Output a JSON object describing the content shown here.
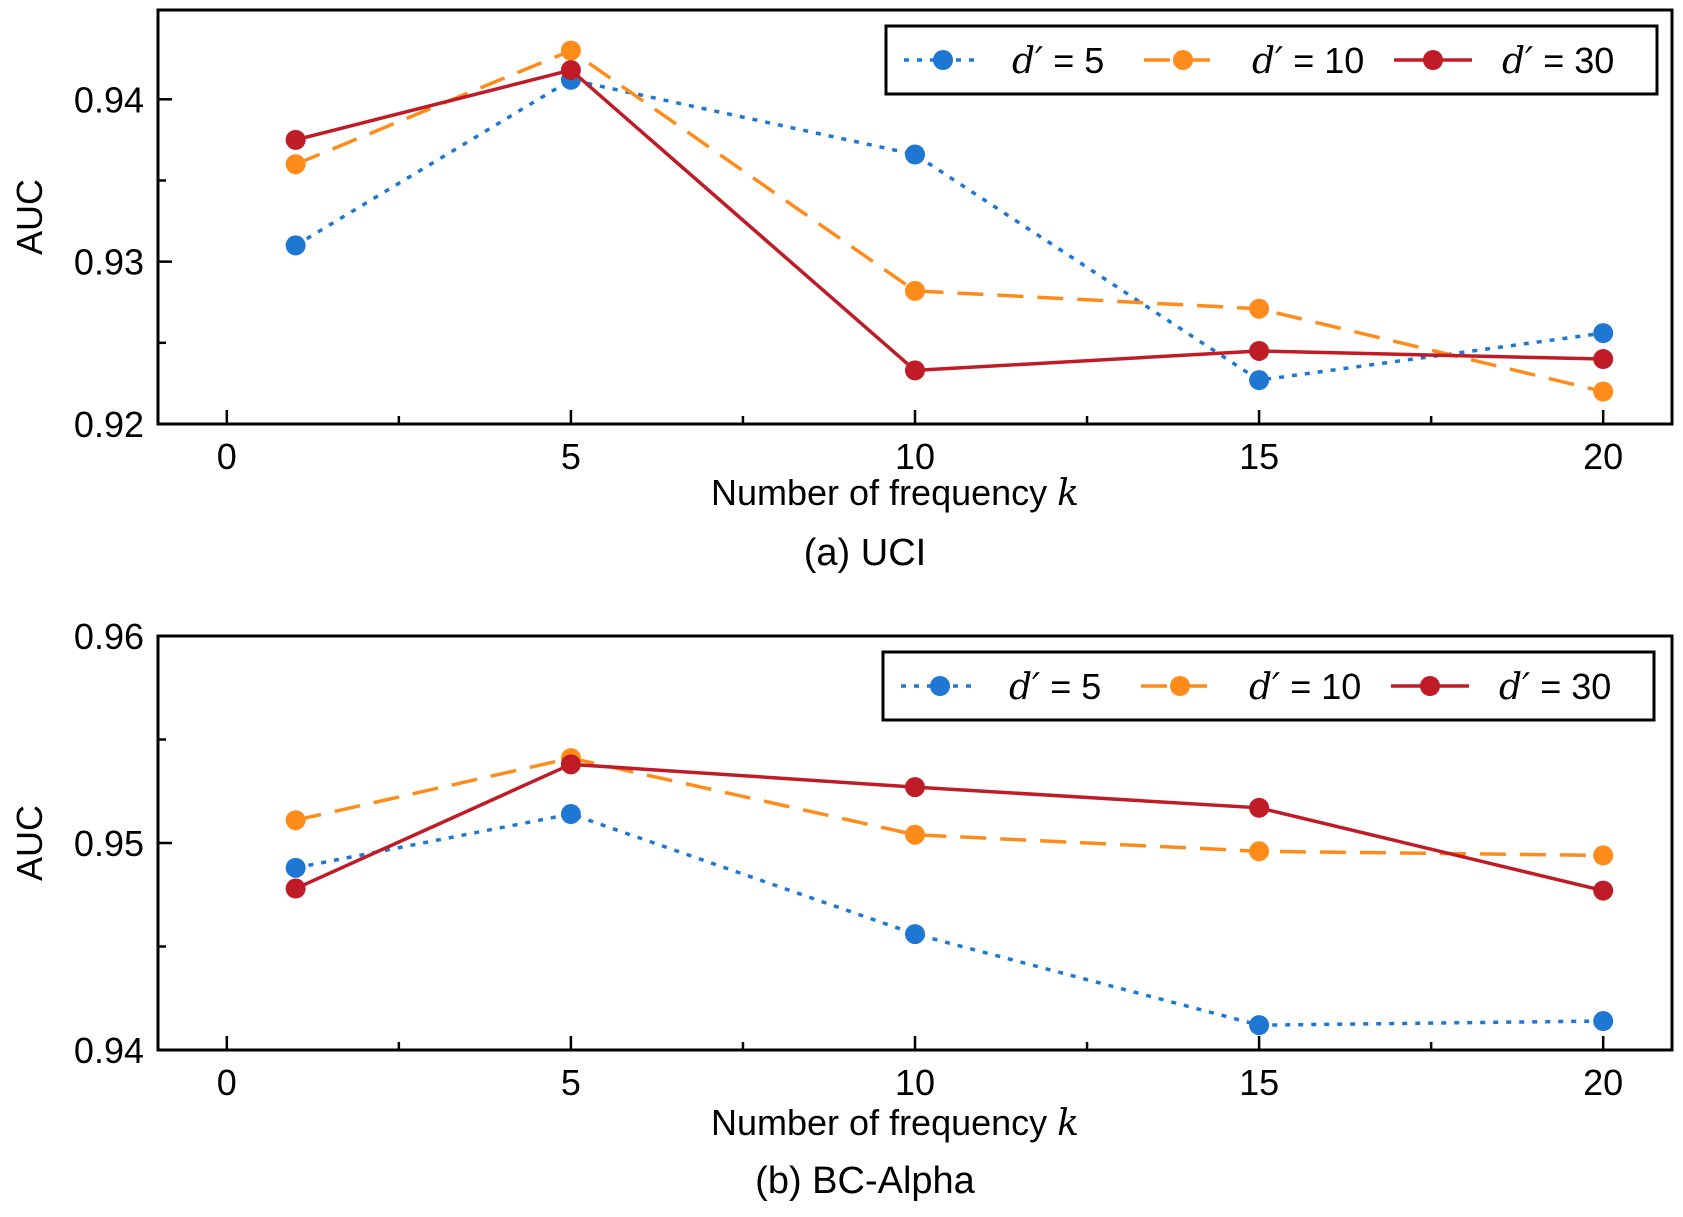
{
  "colors": {
    "d5": "#1f77d4",
    "d10": "#ff8c1a",
    "d30": "#c01c28"
  },
  "chart_data": [
    {
      "type": "line",
      "caption": "(a)  UCI",
      "xlabel_text": "Number of frequency",
      "xlabel_var": "k",
      "ylabel": "AUC",
      "xlim": [
        -1,
        21
      ],
      "ylim": [
        0.92,
        0.9455
      ],
      "xticks": [
        0,
        5,
        10,
        15,
        20
      ],
      "xtick_labels": [
        "0",
        "5",
        "10",
        "15",
        "20"
      ],
      "yticks": [
        0.92,
        0.93,
        0.94
      ],
      "ytick_labels": [
        "0.92",
        "0.93",
        "0.94"
      ],
      "x": [
        1,
        5,
        10,
        15,
        20
      ],
      "series": [
        {
          "name": "d′ = 5",
          "name_var": "d′",
          "name_rest": " = 5",
          "key": "d5",
          "style": "dotted",
          "values": [
            0.931,
            0.9412,
            0.9366,
            0.9227,
            0.9256
          ]
        },
        {
          "name": "d′ = 10",
          "name_var": "d′",
          "name_rest": " = 10",
          "key": "d10",
          "style": "dashed",
          "values": [
            0.936,
            0.943,
            0.9282,
            0.9271,
            0.922
          ]
        },
        {
          "name": "d′ = 30",
          "name_var": "d′",
          "name_rest": " = 30",
          "key": "d30",
          "style": "solid",
          "values": [
            0.9375,
            0.9418,
            0.9233,
            0.9245,
            0.924
          ]
        }
      ],
      "legend": "top-right"
    },
    {
      "type": "line",
      "caption": "(b)  BC-Alpha",
      "xlabel_text": "Number of frequency",
      "xlabel_var": "k",
      "ylabel": "AUC",
      "xlim": [
        -1,
        21
      ],
      "ylim": [
        0.94,
        0.96
      ],
      "xticks": [
        0,
        5,
        10,
        15,
        20
      ],
      "xtick_labels": [
        "0",
        "5",
        "10",
        "15",
        "20"
      ],
      "yticks": [
        0.94,
        0.95,
        0.96
      ],
      "ytick_labels": [
        "0.94",
        "0.95",
        "0.96"
      ],
      "x": [
        1,
        5,
        10,
        15,
        20
      ],
      "series": [
        {
          "name": "d′ = 5",
          "name_var": "d′",
          "name_rest": " = 5",
          "key": "d5",
          "style": "dotted",
          "values": [
            0.9488,
            0.9514,
            0.9456,
            0.9412,
            0.9414
          ]
        },
        {
          "name": "d′ = 10",
          "name_var": "d′",
          "name_rest": " = 10",
          "key": "d10",
          "style": "dashed",
          "values": [
            0.9511,
            0.9541,
            0.9504,
            0.9496,
            0.9494
          ]
        },
        {
          "name": "d′ = 30",
          "name_var": "d′",
          "name_rest": " = 30",
          "key": "d30",
          "style": "solid",
          "values": [
            0.9478,
            0.9538,
            0.9527,
            0.9517,
            0.9477
          ]
        }
      ],
      "legend": "top-right"
    }
  ]
}
